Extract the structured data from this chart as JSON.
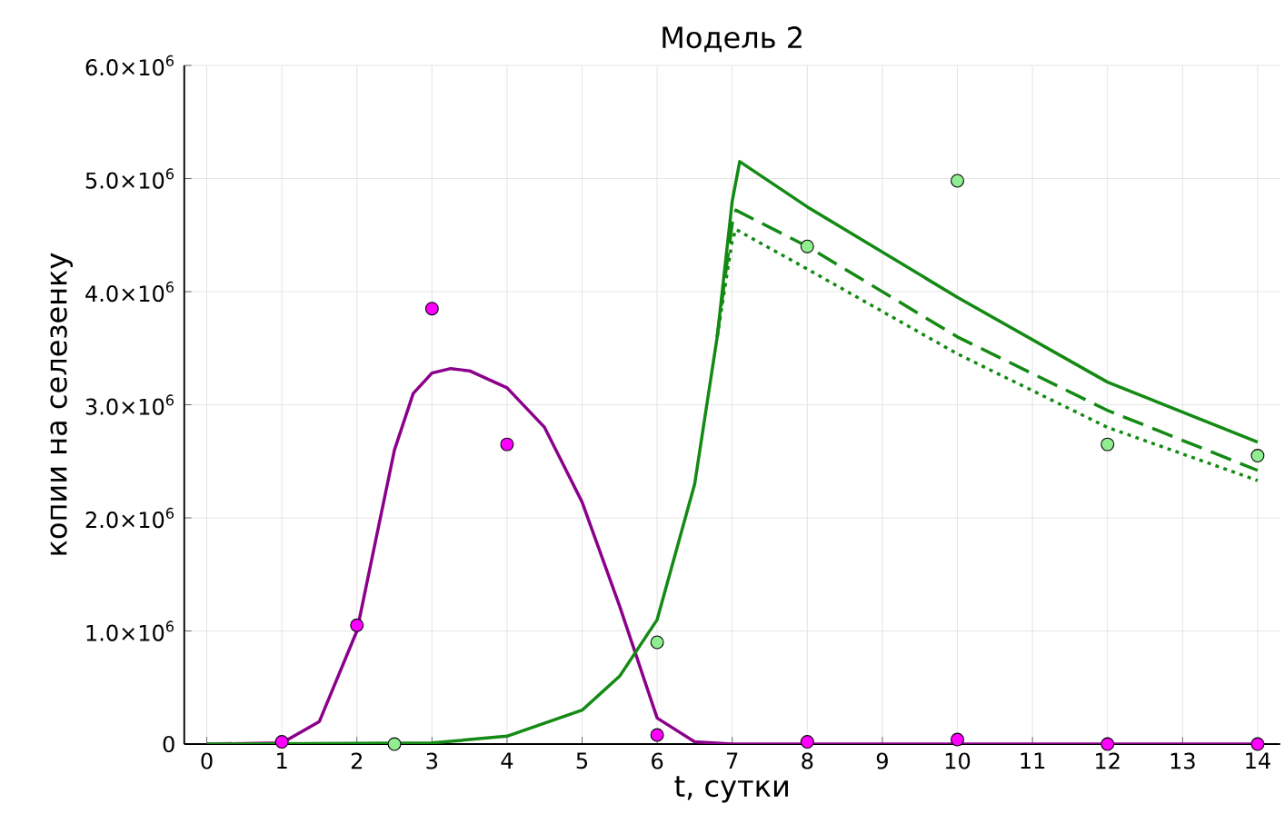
{
  "chart_data": {
    "type": "line",
    "title": "Модель 2",
    "xlabel": "t, сутки",
    "ylabel": "копии на селезенку",
    "xlim": [
      -0.3,
      14.3
    ],
    "ylim": [
      0,
      6000000
    ],
    "xticks": [
      0,
      1,
      2,
      3,
      4,
      5,
      6,
      7,
      8,
      9,
      10,
      11,
      12,
      13,
      14
    ],
    "yticks": [
      0,
      {
        "value": 1000000,
        "label": "1.0×10$^{6}$"
      },
      {
        "value": 2000000,
        "label": "2.0×10$^{6}$"
      },
      {
        "value": 3000000,
        "label": "3.0×10$^{6}$"
      },
      {
        "value": 4000000,
        "label": "4.0×10$^{6}$"
      },
      {
        "value": 5000000,
        "label": "5.0×10$^{6}$"
      },
      {
        "value": 6000000,
        "label": "6.0×10$^{6}$"
      }
    ],
    "grid": true,
    "series": [
      {
        "color": "#8b008b",
        "line_style": "solid",
        "marker": "none",
        "x": [
          0,
          1,
          1.5,
          2,
          2.25,
          2.5,
          2.75,
          3,
          3.25,
          3.5,
          4,
          4.5,
          5,
          5.5,
          6,
          6.5,
          7,
          8,
          10,
          12,
          14
        ],
        "values": [
          0,
          10000,
          200000,
          1000000,
          1800000,
          2600000,
          3100000,
          3280000,
          3320000,
          3300000,
          3150000,
          2800000,
          2140000,
          1220000,
          230000,
          20000,
          0,
          0,
          0,
          0,
          0
        ]
      },
      {
        "color": "#138a13",
        "line_style": "solid",
        "marker": "none",
        "x": [
          0,
          3,
          4,
          5,
          5.5,
          6,
          6.5,
          6.8,
          7,
          7.1,
          8,
          10,
          12,
          14
        ],
        "values": [
          0,
          10000,
          70000,
          300000,
          600000,
          1100000,
          2300000,
          3600000,
          4800000,
          5150000,
          4750000,
          3950000,
          3200000,
          2670000
        ]
      },
      {
        "color": "#138a13",
        "line_style": "dashed",
        "marker": "none",
        "x": [
          6.8,
          7,
          7.05,
          8,
          10,
          12,
          14
        ],
        "values": [
          3600000,
          4600000,
          4720000,
          4400000,
          3600000,
          2950000,
          2420000
        ]
      },
      {
        "color": "#138a13",
        "line_style": "dotted",
        "marker": "none",
        "x": [
          6.8,
          7,
          7.05,
          8,
          10,
          12,
          14
        ],
        "values": [
          3600000,
          4450000,
          4550000,
          4200000,
          3450000,
          2800000,
          2330000
        ]
      },
      {
        "type": "scatter",
        "color": "#ff00ff",
        "marker": "circle",
        "x": [
          1,
          2,
          3,
          4,
          6,
          8,
          10,
          12,
          14
        ],
        "values": [
          20000,
          1050000,
          3850000,
          2650000,
          80000,
          20000,
          40000,
          0,
          0
        ]
      },
      {
        "type": "scatter",
        "color": "#90ee90",
        "marker": "circle",
        "x": [
          2.5,
          6,
          8,
          10,
          12,
          14
        ],
        "values": [
          0,
          900000,
          4400000,
          4980000,
          2650000,
          2550000
        ]
      }
    ]
  }
}
